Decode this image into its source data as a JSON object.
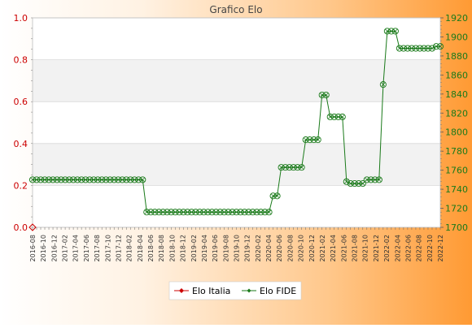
{
  "chart_data": {
    "type": "line",
    "title": "Grafico Elo",
    "left_axis": {
      "ylim": [
        0,
        1
      ],
      "ticks": [
        "0.0",
        "0.2",
        "0.4",
        "0.6",
        "0.8",
        "1.0"
      ],
      "color": "#cc0000"
    },
    "right_axis": {
      "ylim": [
        1700,
        1920
      ],
      "ticks": [
        "1700",
        "1720",
        "1740",
        "1760",
        "1780",
        "1800",
        "1820",
        "1840",
        "1860",
        "1880",
        "1900",
        "1920"
      ],
      "color": "#1a7a1a"
    },
    "x_labels": {
      "count": 101,
      "visible": [
        "2016-08",
        "2016-10",
        "2016-12",
        "2017-02",
        "2017-04",
        "2017-06",
        "2017-08",
        "2017-10",
        "2017-12",
        "2018-02",
        "2018-04",
        "2018-06",
        "2018-08",
        "2018-10",
        "2018-12",
        "2019-02",
        "2019-04",
        "2019-06",
        "2019-08",
        "2019-10",
        "2019-12",
        "2020-02",
        "2020-04",
        "2020-06",
        "2020-08",
        "2020-10",
        "2020-12",
        "2021-02",
        "2021-04",
        "2021-06",
        "2021-08",
        "2021-10",
        "2021-12",
        "2022-02",
        "2022-04",
        "2022-06",
        "2022-08",
        "2022-10",
        "2022-12"
      ]
    },
    "series": [
      {
        "name": "Elo Italia",
        "axis": "left",
        "color": "#cc0000",
        "values": [
          0
        ]
      },
      {
        "name": "Elo FIDE",
        "axis": "right",
        "color": "#1a7a1a",
        "values": [
          1750,
          1750,
          1750,
          1750,
          1750,
          1750,
          1750,
          1750,
          1750,
          1750,
          1750,
          1750,
          1750,
          1750,
          1750,
          1750,
          1750,
          1750,
          1750,
          1750,
          1750,
          1750,
          1750,
          1750,
          1750,
          1750,
          1750,
          1750,
          1716,
          1716,
          1716,
          1716,
          1716,
          1716,
          1716,
          1716,
          1716,
          1716,
          1716,
          1716,
          1716,
          1716,
          1716,
          1716,
          1716,
          1716,
          1716,
          1716,
          1716,
          1716,
          1716,
          1716,
          1716,
          1716,
          1716,
          1716,
          1716,
          1716,
          1716,
          1733,
          1733,
          1763,
          1763,
          1763,
          1763,
          1763,
          1763,
          1792,
          1792,
          1792,
          1792,
          1839,
          1839,
          1816,
          1816,
          1816,
          1816,
          1748,
          1746,
          1746,
          1746,
          1746,
          1750,
          1750,
          1750,
          1750,
          1850,
          1906,
          1906,
          1906,
          1888,
          1888,
          1888,
          1888,
          1888,
          1888,
          1888,
          1888,
          1888,
          1890,
          1890
        ]
      }
    ],
    "legend": {
      "position": "bottom-center"
    },
    "grid": {
      "horizontal": true,
      "banded": true
    }
  }
}
